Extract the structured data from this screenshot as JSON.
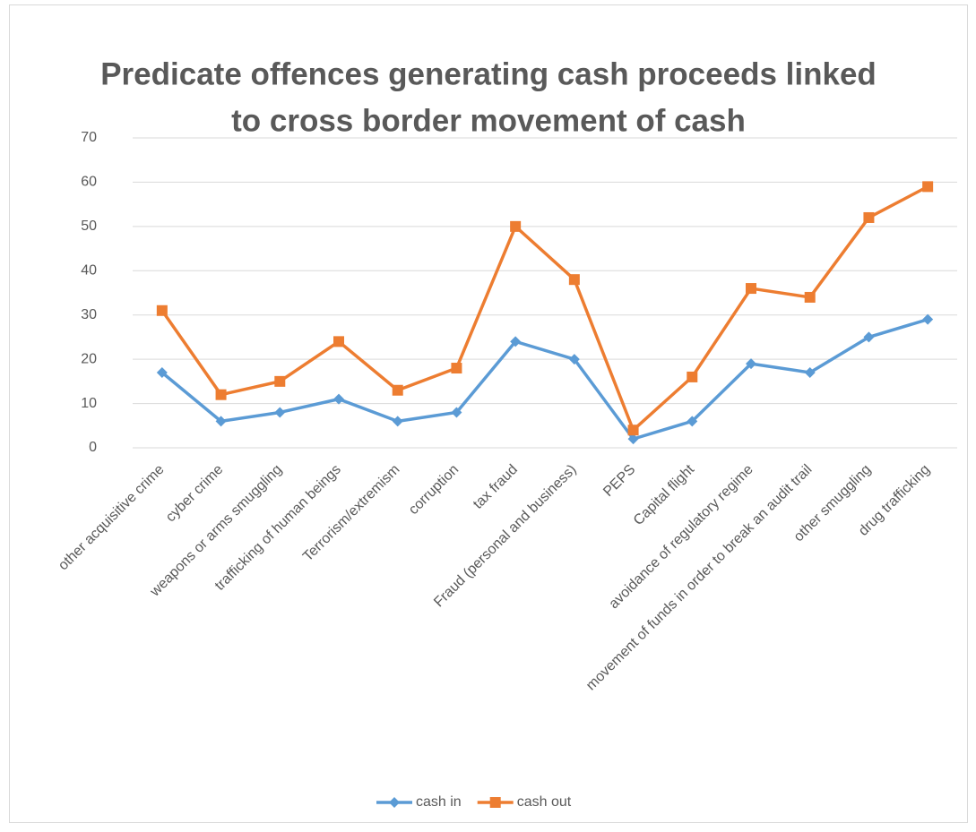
{
  "chart_data": {
    "type": "line",
    "title": [
      "Predicate offences generating cash proceeds linked",
      "to cross border movement of cash"
    ],
    "categories": [
      "other acquisitive crime",
      "cyber crime",
      "weapons or arms smuggling",
      "trafficking of human beings",
      "Terrorism/extremism",
      "corruption",
      "tax fraud",
      "Fraud (personal and business)",
      "PEPS",
      "Capital flight",
      "avoidance of regulatory regime",
      "movement of funds in order to break an audit trail",
      "other smuggling",
      "drug trafficking"
    ],
    "series": [
      {
        "name": "cash in",
        "color": "#5b9bd5",
        "marker": "diamond",
        "values": [
          17,
          6,
          8,
          11,
          6,
          8,
          24,
          20,
          2,
          6,
          19,
          17,
          25,
          29
        ]
      },
      {
        "name": "cash out",
        "color": "#ed7d31",
        "marker": "square",
        "values": [
          31,
          12,
          15,
          24,
          13,
          18,
          50,
          38,
          4,
          16,
          36,
          34,
          52,
          59
        ]
      }
    ],
    "ylim": [
      0,
      70
    ],
    "yticks": [
      0,
      10,
      20,
      30,
      40,
      50,
      60,
      70
    ],
    "grid": true,
    "legend": "bottom"
  }
}
